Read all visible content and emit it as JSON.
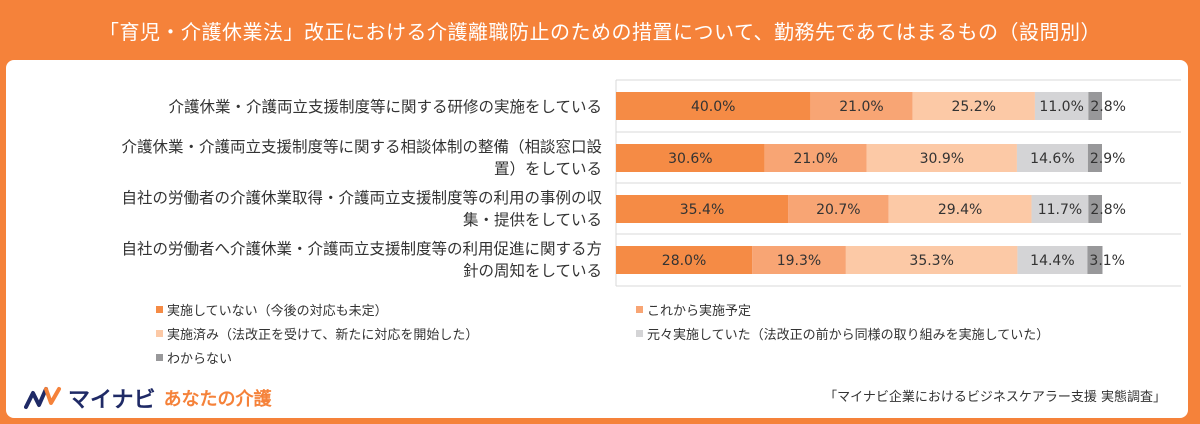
{
  "title": "「育児・介護休業法」改正における介護離職防止のための措置について、勤務先であてはまるもの（設問別）",
  "chart_data": {
    "type": "bar",
    "orientation": "horizontal",
    "stacked": true,
    "percent": true,
    "categories": [
      "介護休業・介護両立支援制度等に関する研修の実施をしている",
      "介護休業・介護両立支援制度等に関する相談体制の整備（相談窓口設置）をしている",
      "自社の労働者の介護休業取得・介護両立支援制度等の利用の事例の収集・提供をしている",
      "自社の労働者へ介護休業・介護両立支援制度等の利用促進に関する方針の周知をしている"
    ],
    "category_lines": [
      [
        "介護休業・介護両立支援制度等に関する研修の実施をしている"
      ],
      [
        "介護休業・介護両立支援制度等に関する相談体制の整備（相談窓口設",
        "置）をしている"
      ],
      [
        "自社の労働者の介護休業取得・介護両立支援制度等の利用の事例の収",
        "集・提供をしている"
      ],
      [
        "自社の労働者へ介護休業・介護両立支援制度等の利用促進に関する方",
        "針の周知をしている"
      ]
    ],
    "series": [
      {
        "name": "実施していない（今後の対応も未定）",
        "color": "#f58b45",
        "values": [
          40.0,
          30.6,
          35.4,
          28.0
        ]
      },
      {
        "name": "これから実施予定",
        "color": "#f8a574",
        "values": [
          21.0,
          21.0,
          20.7,
          19.3
        ]
      },
      {
        "name": "実施済み（法改正を受けて、新たに対応を開始した）",
        "color": "#fcc9a6",
        "values": [
          25.2,
          30.9,
          29.4,
          35.3
        ]
      },
      {
        "name": "元々実施していた（法改正の前から同様の取り組みを実施していた）",
        "color": "#d4d4d6",
        "values": [
          11.0,
          14.6,
          11.7,
          14.4
        ]
      },
      {
        "name": "わからない",
        "color": "#98989a",
        "values": [
          2.8,
          2.9,
          2.8,
          3.1
        ]
      }
    ],
    "value_labels": [
      [
        "40.0%",
        "21.0%",
        "25.2%",
        "11.0%",
        "2.8%"
      ],
      [
        "30.6%",
        "21.0%",
        "30.9%",
        "14.6%",
        "2.9%"
      ],
      [
        "35.4%",
        "20.7%",
        "29.4%",
        "11.7%",
        "2.8%"
      ],
      [
        "28.0%",
        "19.3%",
        "35.3%",
        "14.4%",
        "3.1%"
      ]
    ],
    "xlim": [
      0,
      100
    ],
    "legend_position": "bottom",
    "grid": false
  },
  "logo": {
    "brand": "マイナビ",
    "sub": "あなたの介護"
  },
  "source": "「マイナビ企業におけるビジネスケアラー支援 実態調査」",
  "colors": {
    "brand_orange": "#f5823a",
    "brand_navy": "#1f2a66"
  }
}
